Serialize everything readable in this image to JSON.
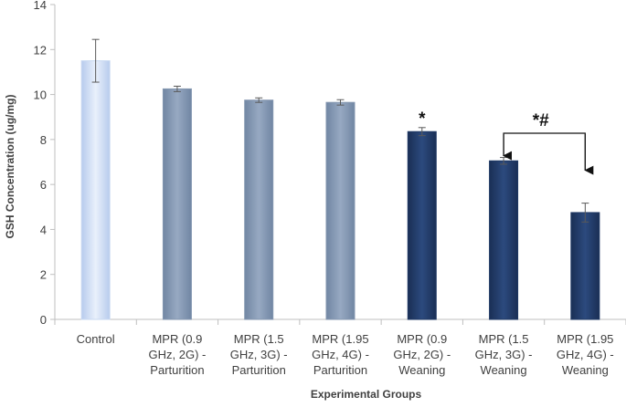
{
  "chart_data": {
    "type": "bar",
    "title": "",
    "xlabel": "Experimental Groups",
    "ylabel": "GSH Concentration (ug/mg)",
    "ylim": [
      0,
      14
    ],
    "yticks": [
      0,
      2,
      4,
      6,
      8,
      10,
      12,
      14
    ],
    "grid": false,
    "legend": "none",
    "categories": [
      [
        "Control"
      ],
      [
        "MPR (0.9",
        "GHz, 2G) -",
        "Parturition"
      ],
      [
        "MPR (1.5",
        "GHz, 3G) -",
        "Parturition"
      ],
      [
        "MPR (1.95",
        "GHz, 4G) -",
        "Parturition"
      ],
      [
        "MPR (0.9",
        "GHz, 2G) -",
        "Weaning"
      ],
      [
        "MPR (1.5",
        "GHz, 3G) -",
        "Weaning"
      ],
      [
        "MPR (1.95",
        "GHz, 4G) -",
        "Weaning"
      ]
    ],
    "values": [
      11.5,
      10.25,
      9.75,
      9.65,
      8.35,
      7.05,
      4.75
    ],
    "errors": [
      0.95,
      0.12,
      0.1,
      0.12,
      0.18,
      0.15,
      0.42
    ],
    "colors": [
      "#c9d9f2",
      "#8497b0",
      "#8497b0",
      "#8497b0",
      "#1f3864",
      "#1f3864",
      "#1f3864"
    ],
    "annotations": [
      {
        "bar": 4,
        "text": "*"
      },
      {
        "from_bar": 5,
        "to_bar": 6,
        "text": "*#"
      }
    ]
  }
}
